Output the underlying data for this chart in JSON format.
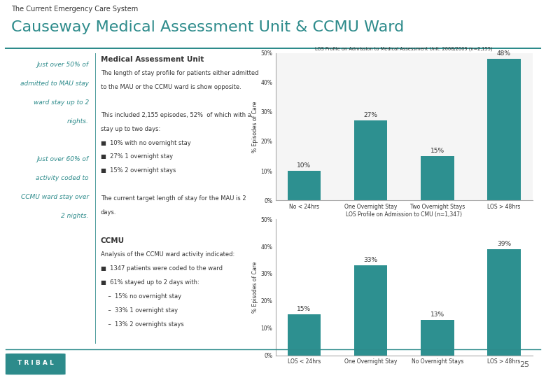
{
  "title_small": "The Current Emergency Care System",
  "title_large": "Causeway Medical Assessment Unit & CCMU Ward",
  "teal_color": "#2D8B8B",
  "bar_color": "#2D9090",
  "chart1_title": "LOS Profile on Admission to Medical Assessment Unit: 2008/2009 (n=2,155)",
  "chart1_categories": [
    "No < 24hrs",
    "One Overnight Stay",
    "Two Overnight Stays",
    "LOS > 48hrs"
  ],
  "chart1_values": [
    10,
    27,
    15,
    48
  ],
  "chart1_ylabel": "% Episodes of Care",
  "chart1_ylim": [
    0,
    50
  ],
  "chart1_yticks": [
    0,
    10,
    20,
    30,
    40,
    50
  ],
  "chart2_title": "LOS Profile on Admission to CMU (n=1,347)",
  "chart2_categories": [
    "LOS < 24hrs",
    "One Overnight Stay",
    "No Overnight Stays",
    "LOS > 48hrs"
  ],
  "chart2_values": [
    15,
    33,
    13,
    39
  ],
  "chart2_ylabel": "% Episodes of Care",
  "chart2_ylim": [
    0,
    50
  ],
  "chart2_yticks": [
    0,
    10,
    20,
    30,
    40,
    50
  ],
  "background_color": "#FFFFFF",
  "page_number": "25",
  "tribal_logo": "T R I B A L"
}
